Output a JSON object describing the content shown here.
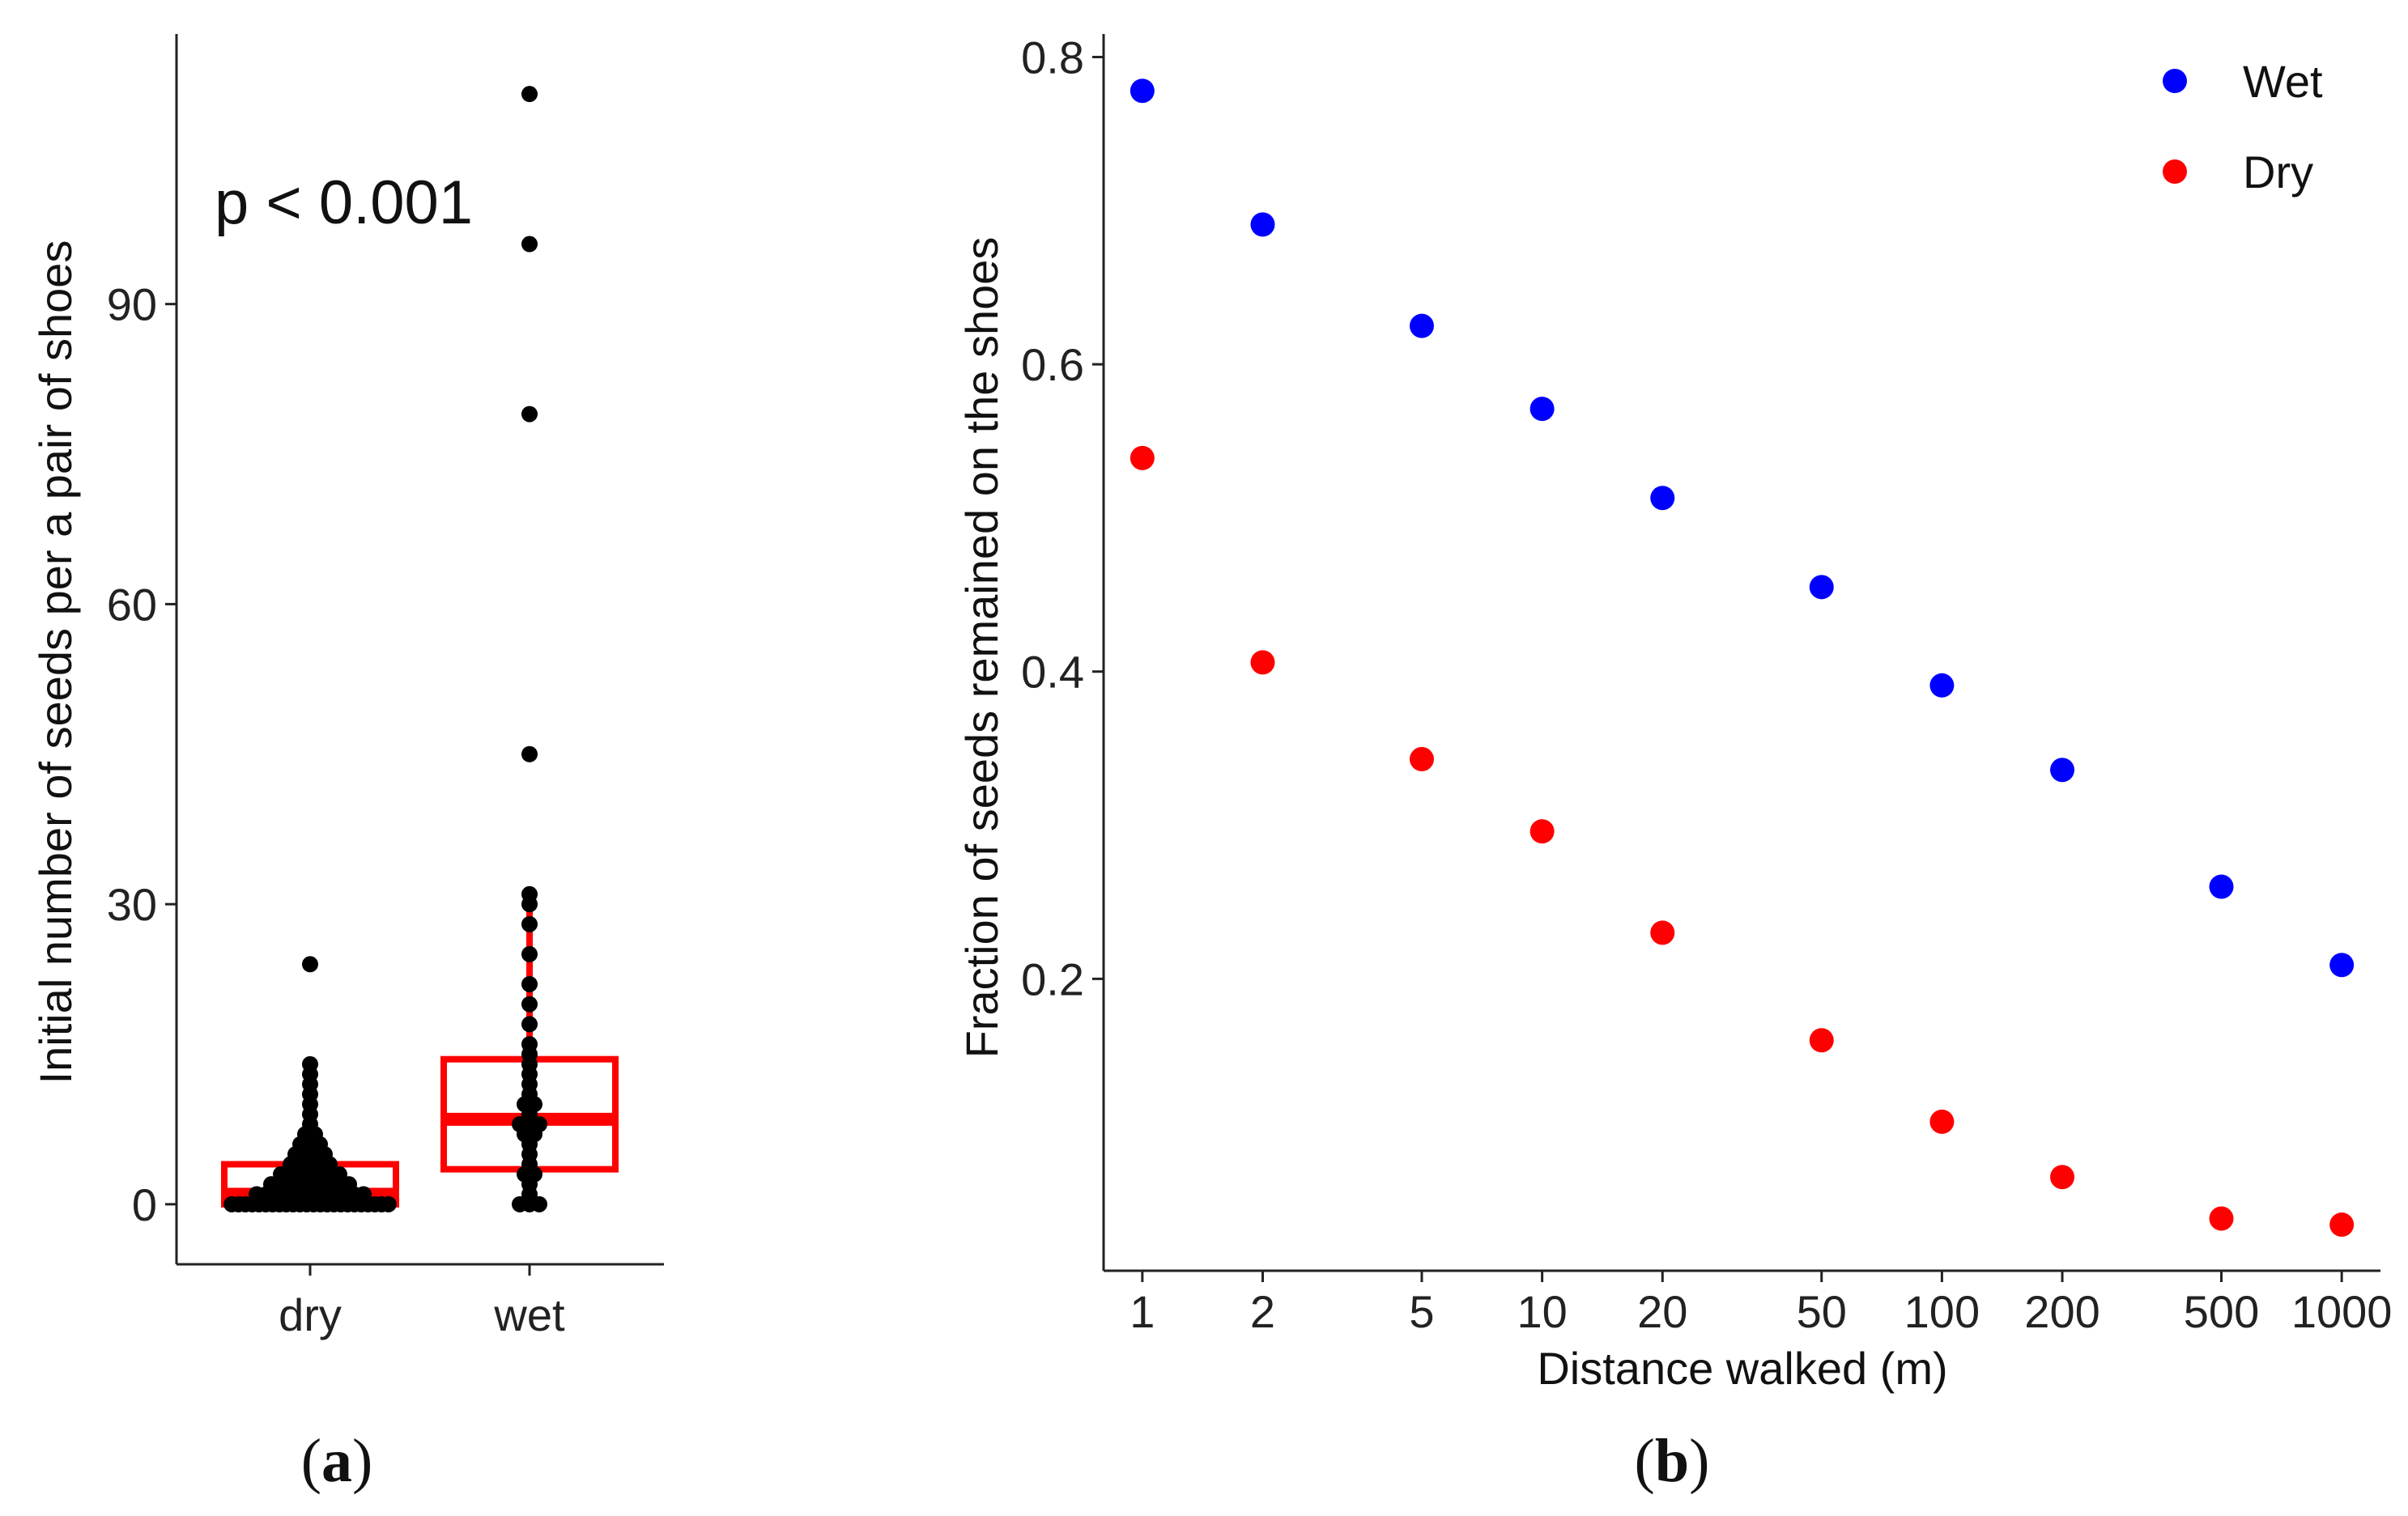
{
  "chart_data": [
    {
      "id": "a",
      "type": "boxplot",
      "panel_label": "a",
      "ylabel": "Initial number of seeds per a pair of shoes",
      "xlabel": "",
      "categories": [
        "dry",
        "wet"
      ],
      "ylim": [
        -6,
        117
      ],
      "yticks": [
        0,
        30,
        60,
        90
      ],
      "annotation": "p < 0.001",
      "box_color": "#ff0000",
      "point_color": "#000000",
      "boxes": [
        {
          "category": "dry",
          "q1": 0,
          "median": 1,
          "q3": 4,
          "whisker_low": 0,
          "whisker_high": 9
        },
        {
          "category": "wet",
          "q1": 3.5,
          "median": 8.5,
          "q3": 14.5,
          "whisker_low": 0,
          "whisker_high": 30
        }
      ],
      "points": {
        "dry": [
          0,
          0,
          0,
          0,
          0,
          0,
          0,
          0,
          0,
          0,
          0,
          0,
          0,
          0,
          0,
          0,
          0,
          0,
          0,
          0,
          0,
          0,
          0,
          0,
          1,
          1,
          1,
          1,
          1,
          1,
          1,
          1,
          1,
          1,
          1,
          1,
          2,
          2,
          2,
          2,
          2,
          2,
          2,
          2,
          2,
          3,
          3,
          3,
          3,
          3,
          3,
          3,
          4,
          4,
          4,
          4,
          4,
          5,
          5,
          5,
          5,
          6,
          6,
          6,
          7,
          7,
          8,
          9,
          10,
          11,
          12,
          13,
          14,
          24
        ],
        "wet": [
          0,
          0,
          0,
          1,
          2,
          3,
          3,
          4,
          5,
          6,
          7,
          7,
          8,
          8,
          8,
          9,
          10,
          10,
          11,
          12,
          13,
          14,
          15,
          16,
          18,
          20,
          22,
          25,
          28,
          30,
          31,
          45,
          79,
          96,
          111
        ]
      }
    },
    {
      "id": "b",
      "type": "scatter",
      "panel_label": "b",
      "xlabel": "Distance walked (m)",
      "ylabel": "Fraction of seeds remained on the shoes",
      "xscale": "log10",
      "xlim": [
        0.8,
        1250
      ],
      "ylim": [
        0.01,
        0.815
      ],
      "xticks": [
        1,
        2,
        5,
        10,
        20,
        50,
        100,
        200,
        500,
        1000
      ],
      "yticks": [
        0.2,
        0.4,
        0.6,
        0.8
      ],
      "legend_position": "top-right",
      "series": [
        {
          "name": "Wet",
          "color": "#0000ff",
          "x": [
            1,
            2,
            5,
            10,
            20,
            50,
            100,
            200,
            500,
            1000
          ],
          "y": [
            0.778,
            0.691,
            0.625,
            0.571,
            0.513,
            0.455,
            0.391,
            0.336,
            0.26,
            0.209
          ]
        },
        {
          "name": "Dry",
          "color": "#ff0000",
          "x": [
            1,
            2,
            5,
            10,
            20,
            50,
            100,
            200,
            500,
            1000
          ],
          "y": [
            0.539,
            0.406,
            0.343,
            0.296,
            0.23,
            0.16,
            0.107,
            0.071,
            0.044,
            0.04
          ]
        }
      ]
    }
  ]
}
